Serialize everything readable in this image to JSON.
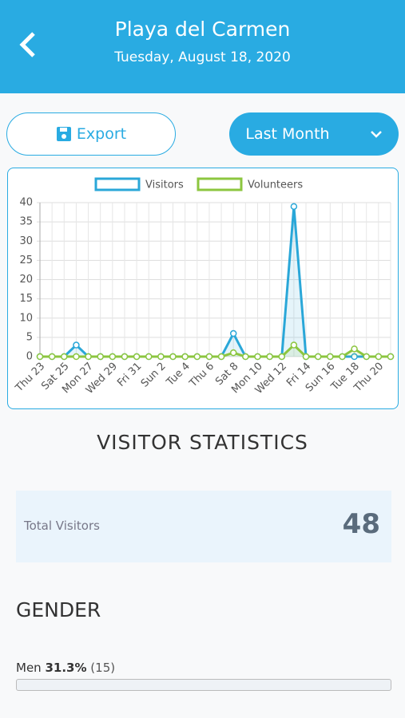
{
  "header": {
    "title": "Playa del Carmen",
    "date": "Tuesday, August 18, 2020"
  },
  "buttons": {
    "export": "Export",
    "range": "Last Month"
  },
  "chart_data": {
    "type": "line",
    "categories": [
      "Thu 23",
      null,
      "Sat 25",
      null,
      "Mon 27",
      null,
      "Wed 29",
      null,
      "Fri 31",
      null,
      "Sun 2",
      null,
      "Tue 4",
      null,
      "Thu 6",
      null,
      "Sat 8",
      null,
      "Mon 10",
      null,
      "Wed 12",
      null,
      "Fri 14",
      null,
      "Sun 16",
      null,
      "Tue 18",
      null,
      "Thu 20",
      null
    ],
    "series": [
      {
        "name": "Visitors",
        "color": "#2aa7d8",
        "values": [
          0,
          0,
          0,
          3,
          0,
          0,
          0,
          0,
          0,
          0,
          0,
          0,
          0,
          0,
          0,
          0,
          6,
          0,
          0,
          0,
          0,
          39,
          0,
          0,
          0,
          0,
          0,
          0,
          0,
          0
        ]
      },
      {
        "name": "Volunteers",
        "color": "#8cc63f",
        "values": [
          0,
          0,
          0,
          0,
          0,
          0,
          0,
          0,
          0,
          0,
          0,
          0,
          0,
          0,
          0,
          0,
          1,
          0,
          0,
          0,
          0,
          3,
          0,
          0,
          0,
          0,
          2,
          0,
          0,
          0
        ]
      }
    ],
    "ylim": [
      0,
      40
    ],
    "yticks": [
      0,
      5,
      10,
      15,
      20,
      25,
      30,
      35,
      40
    ],
    "grid": true
  },
  "stats": {
    "heading": "VISITOR STATISTICS",
    "total_label": "Total Visitors",
    "total": 48
  },
  "gender": {
    "heading": "GENDER",
    "men_label": "Men",
    "men_percent": "31.3%",
    "men_count": "(15)"
  }
}
